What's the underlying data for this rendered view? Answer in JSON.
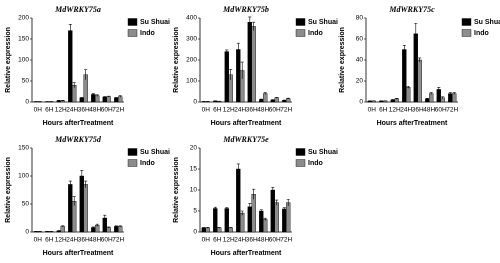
{
  "chart_data": [
    {
      "type": "bar",
      "title": "MdWRKY75a",
      "x_label": "Hours afterTreatment",
      "y_label": "Relative expression",
      "categories": [
        "0H",
        "6H",
        "12H",
        "24H",
        "36H",
        "48H",
        "60H",
        "72H"
      ],
      "series": [
        {
          "name": "Su Shuai",
          "color": "#000000",
          "values": [
            1,
            1,
            3,
            170,
            10,
            18,
            12,
            10
          ],
          "errors": [
            0.2,
            0.2,
            1,
            15,
            1,
            2,
            1,
            1
          ]
        },
        {
          "name": "Indo",
          "color": "#8c8c8c",
          "values": [
            1,
            1,
            3,
            40,
            65,
            15,
            13,
            13
          ],
          "errors": [
            0.2,
            0.2,
            1,
            6,
            12,
            2,
            1,
            2
          ]
        }
      ],
      "ylim": [
        0,
        200
      ],
      "yticks": [
        0,
        50,
        100,
        150,
        200
      ],
      "legend": "right"
    },
    {
      "type": "bar",
      "title": "MdWRKY75b",
      "x_label": "Hours afterTreatment",
      "y_label": "Relative expression",
      "categories": [
        "0H",
        "6H",
        "12H",
        "24H",
        "36H",
        "48H",
        "60H",
        "72H"
      ],
      "series": [
        {
          "name": "Su Shuai",
          "color": "#000000",
          "values": [
            2,
            5,
            240,
            250,
            380,
            12,
            10,
            8
          ],
          "errors": [
            0.5,
            1,
            8,
            30,
            25,
            2,
            1,
            1
          ]
        },
        {
          "name": "Indo",
          "color": "#8c8c8c",
          "values": [
            2,
            3,
            130,
            150,
            360,
            40,
            20,
            16
          ],
          "errors": [
            0.5,
            1,
            25,
            40,
            20,
            5,
            2,
            2
          ]
        }
      ],
      "ylim": [
        0,
        400
      ],
      "yticks": [
        0,
        100,
        200,
        300,
        400
      ],
      "legend": "right"
    },
    {
      "type": "bar",
      "title": "MdWRKY75c",
      "x_label": "Hours afterTreatment",
      "y_label": "Relative expression",
      "categories": [
        "0H",
        "6H",
        "12H",
        "24H",
        "36H",
        "48H",
        "60H",
        "72H"
      ],
      "series": [
        {
          "name": "Su Shuai",
          "color": "#000000",
          "values": [
            1,
            1,
            2,
            50,
            65,
            3,
            12,
            8
          ],
          "errors": [
            0.2,
            0.2,
            0.5,
            4,
            10,
            0.5,
            2,
            1
          ]
        },
        {
          "name": "Indo",
          "color": "#8c8c8c",
          "values": [
            1,
            1,
            3,
            14,
            40,
            8,
            4,
            8
          ],
          "errors": [
            0.2,
            0.2,
            0.5,
            1,
            2,
            1,
            1,
            1
          ]
        }
      ],
      "ylim": [
        0,
        80
      ],
      "yticks": [
        0,
        20,
        40,
        60,
        80
      ],
      "legend": "right"
    },
    {
      "type": "bar",
      "title": "MdWRKY75d",
      "x_label": "Hours afterTreatment",
      "y_label": "Relative expression",
      "categories": [
        "0H",
        "6H",
        "12H",
        "24H",
        "36H",
        "48H",
        "60H",
        "72H"
      ],
      "series": [
        {
          "name": "Su Shuai",
          "color": "#000000",
          "values": [
            1,
            1,
            2,
            85,
            100,
            8,
            25,
            10
          ],
          "errors": [
            0.2,
            0.2,
            0.5,
            6,
            10,
            1,
            5,
            1
          ]
        },
        {
          "name": "Indo",
          "color": "#8c8c8c",
          "values": [
            1,
            1,
            10,
            55,
            85,
            12,
            8,
            10
          ],
          "errors": [
            0.2,
            0.2,
            1,
            8,
            6,
            2,
            1,
            1
          ]
        }
      ],
      "ylim": [
        0,
        150
      ],
      "yticks": [
        0,
        50,
        100,
        150
      ],
      "legend": "right"
    },
    {
      "type": "bar",
      "title": "MdWRKY75e",
      "x_label": "Hours afterTreatment",
      "y_label": "Relative expression",
      "categories": [
        "0H",
        "6H",
        "12H",
        "24H",
        "36H",
        "48H",
        "60H",
        "72H"
      ],
      "series": [
        {
          "name": "Su Shuai",
          "color": "#000000",
          "values": [
            1,
            5.6,
            5.6,
            15,
            6,
            5,
            10,
            5.5
          ],
          "errors": [
            0.1,
            0.3,
            0.2,
            1.2,
            0.8,
            0.3,
            0.6,
            0.3
          ]
        },
        {
          "name": "Indo",
          "color": "#8c8c8c",
          "values": [
            1,
            1,
            1,
            4.5,
            9,
            3,
            7,
            7
          ],
          "errors": [
            0.1,
            0.1,
            0.1,
            0.5,
            1.2,
            0.3,
            0.6,
            0.8
          ]
        }
      ],
      "ylim": [
        0,
        20
      ],
      "yticks": [
        0,
        5,
        10,
        15,
        20
      ],
      "legend": "right"
    }
  ]
}
